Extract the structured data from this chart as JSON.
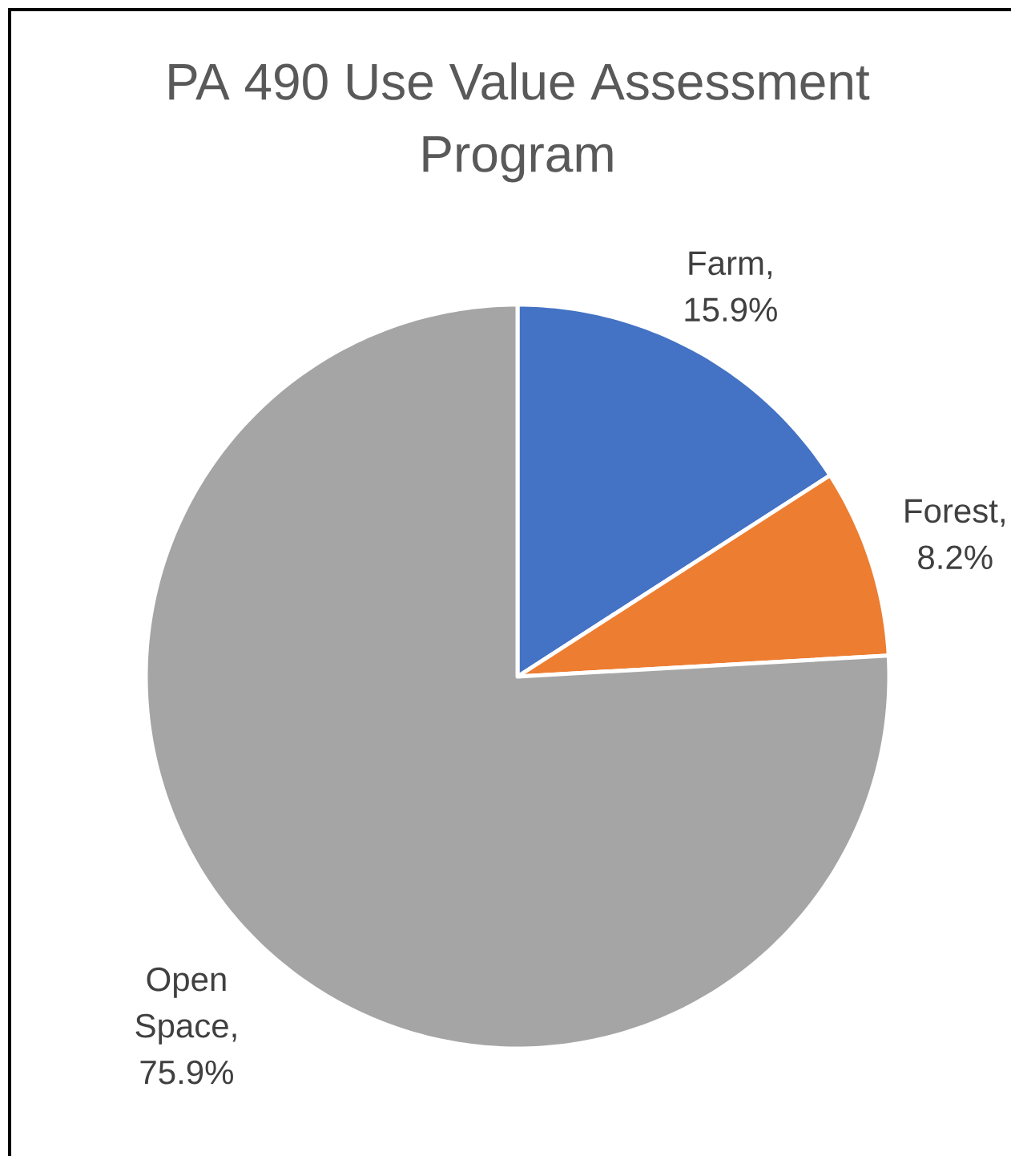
{
  "chart_data": {
    "type": "pie",
    "title": "PA 490 Use Value Assessment Program",
    "categories": [
      "Farm",
      "Forest",
      "Open Space"
    ],
    "values": [
      15.9,
      8.2,
      75.9
    ],
    "colors": [
      "#4472c4",
      "#ed7d31",
      "#a5a5a5"
    ],
    "value_labels": [
      ", 15.9%",
      ", 8.2%",
      ", 75.9%"
    ]
  }
}
